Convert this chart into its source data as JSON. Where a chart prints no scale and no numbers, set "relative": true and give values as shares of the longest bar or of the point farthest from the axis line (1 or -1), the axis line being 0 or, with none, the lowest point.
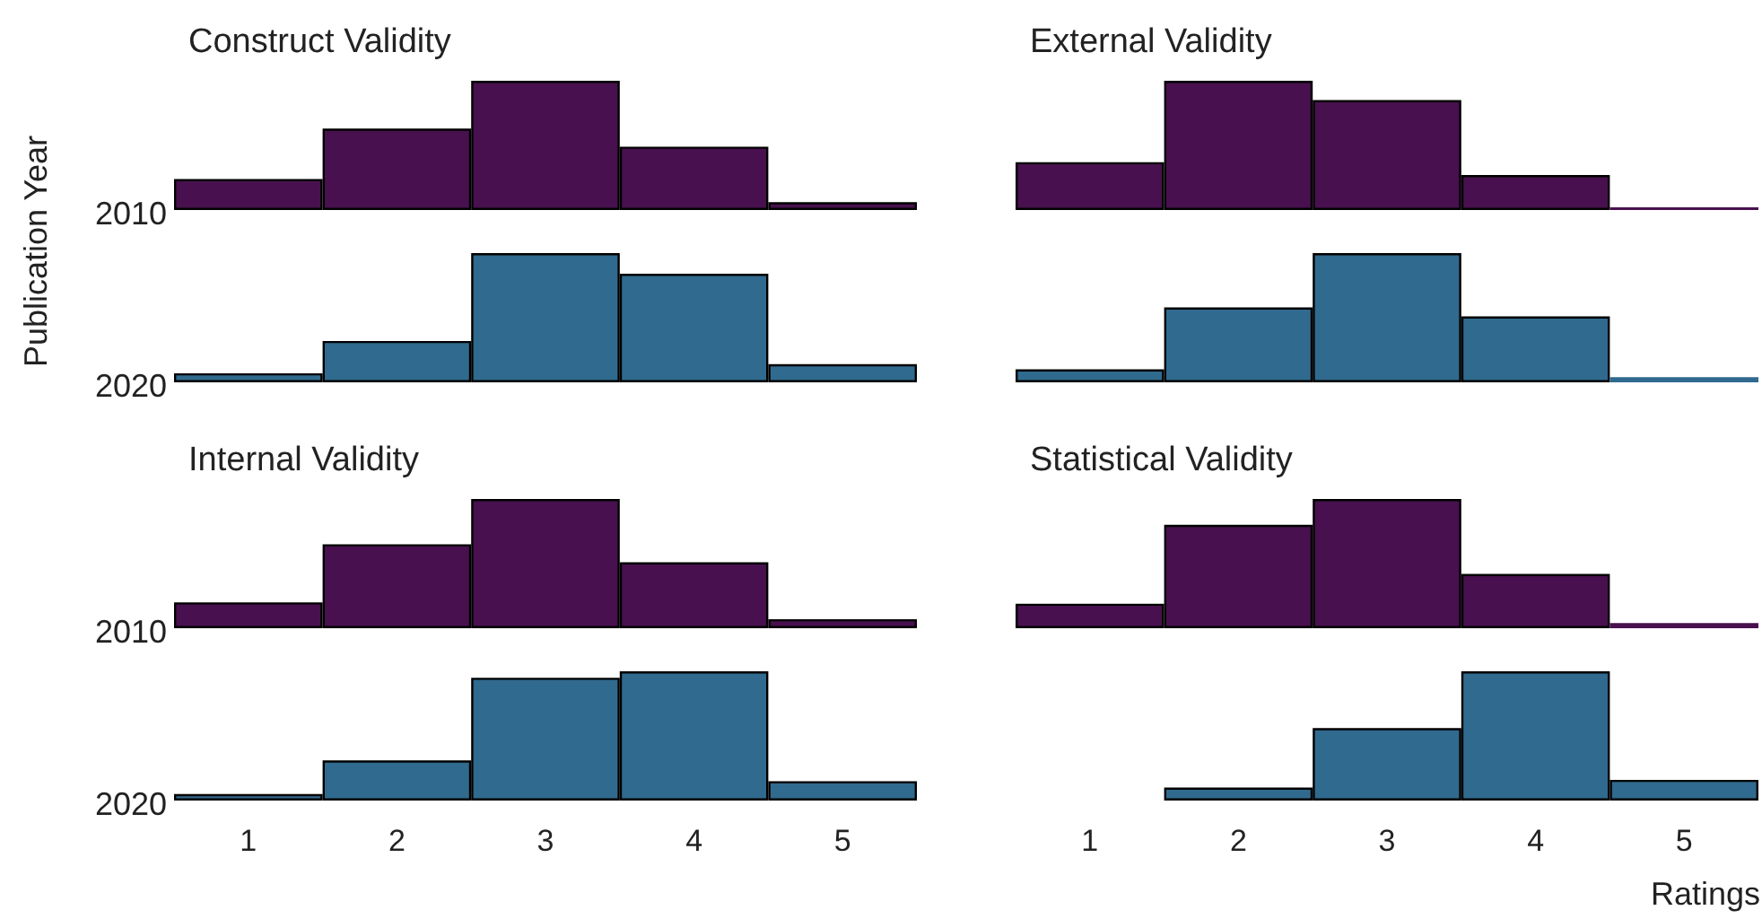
{
  "chart_data": [
    {
      "type": "bar",
      "title": "Construct Validity",
      "ylabel": "Publication Year",
      "relative": true,
      "categories": [
        "1",
        "2",
        "3",
        "4",
        "5"
      ],
      "tick_labels": false,
      "series": [
        {
          "name": "2010",
          "color": "#48104e",
          "values": [
            0.24,
            0.63,
            1,
            0.49,
            0.06
          ]
        }
      ]
    },
    {
      "type": "bar",
      "relative": true,
      "categories": [
        "1",
        "2",
        "3",
        "4",
        "5"
      ],
      "tick_labels": false,
      "series": [
        {
          "name": "2020",
          "color": "#306a8e",
          "values": [
            0.07,
            0.32,
            1,
            0.84,
            0.14
          ]
        }
      ]
    },
    {
      "type": "bar",
      "title": "External Validity",
      "relative": true,
      "categories": [
        "1",
        "2",
        "3",
        "4",
        "5"
      ],
      "tick_labels": false,
      "series": [
        {
          "color": "#48104e",
          "values": [
            0.37,
            1,
            0.85,
            0.27,
            0.02
          ]
        }
      ]
    },
    {
      "type": "bar",
      "relative": true,
      "categories": [
        "1",
        "2",
        "3",
        "4",
        "5"
      ],
      "tick_labels": false,
      "series": [
        {
          "color": "#306a8e",
          "values": [
            0.1,
            0.58,
            1,
            0.51,
            0.04
          ]
        }
      ]
    },
    {
      "type": "bar",
      "title": "Internal Validity",
      "relative": true,
      "categories": [
        "1",
        "2",
        "3",
        "4",
        "5"
      ],
      "tick_labels": false,
      "series": [
        {
          "name": "2010",
          "color": "#48104e",
          "values": [
            0.2,
            0.65,
            1,
            0.51,
            0.07
          ]
        }
      ]
    },
    {
      "type": "bar",
      "relative": true,
      "categories": [
        "1",
        "2",
        "3",
        "4",
        "5"
      ],
      "series": [
        {
          "name": "2020",
          "color": "#306a8e",
          "values": [
            0.05,
            0.31,
            0.95,
            1,
            0.15
          ]
        }
      ]
    },
    {
      "type": "bar",
      "title": "Statistical Validity",
      "relative": true,
      "categories": [
        "1",
        "2",
        "3",
        "4",
        "5"
      ],
      "tick_labels": false,
      "series": [
        {
          "color": "#48104e",
          "values": [
            0.19,
            0.8,
            1,
            0.42,
            0.04
          ]
        }
      ]
    },
    {
      "type": "bar",
      "xlabel": "Ratings",
      "relative": true,
      "categories": [
        "1",
        "2",
        "3",
        "4",
        "5"
      ],
      "series": [
        {
          "color": "#306a8e",
          "values": [
            0,
            0.1,
            0.56,
            1,
            0.16
          ]
        }
      ]
    }
  ]
}
